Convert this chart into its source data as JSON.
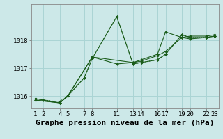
{
  "title": "Graphe pression niveau de la mer (hPa)",
  "bg_color": "#cce8e8",
  "grid_color": "#aad4d4",
  "line_color": "#1a5c1a",
  "ylim": [
    1015.55,
    1019.3
  ],
  "yticks": [
    1016,
    1017,
    1018
  ],
  "xtick_labels": [
    "1",
    "2",
    "4",
    "5",
    "7",
    "8",
    "11",
    "13",
    "14",
    "16",
    "17",
    "19",
    "20",
    "22",
    "23"
  ],
  "xtick_positions": [
    1,
    2,
    4,
    5,
    7,
    8,
    11,
    13,
    14,
    16,
    17,
    19,
    20,
    22,
    23
  ],
  "xlim": [
    0.5,
    23.5
  ],
  "lines": [
    {
      "x": [
        1,
        2,
        4,
        5,
        7,
        8,
        11,
        13,
        14,
        16,
        17,
        19,
        20,
        22,
        23
      ],
      "y": [
        1015.9,
        1015.85,
        1015.8,
        1016.0,
        1016.65,
        1017.35,
        1018.85,
        1017.15,
        1017.2,
        1017.3,
        1017.5,
        1018.2,
        1018.1,
        1018.1,
        1018.15
      ],
      "style": "dotted"
    },
    {
      "x": [
        1,
        4,
        5,
        7,
        8,
        11,
        13,
        14,
        16,
        17,
        19,
        20,
        22,
        23
      ],
      "y": [
        1015.9,
        1015.75,
        1016.0,
        1016.65,
        1017.35,
        1018.85,
        1017.15,
        1017.2,
        1017.3,
        1017.5,
        1018.2,
        1018.1,
        1018.1,
        1018.15
      ],
      "style": "solid"
    },
    {
      "x": [
        1,
        4,
        5,
        8,
        11,
        13,
        14,
        16,
        17,
        19,
        20,
        22,
        23
      ],
      "y": [
        1015.85,
        1015.75,
        1016.0,
        1017.4,
        1017.15,
        1017.2,
        1017.3,
        1017.5,
        1018.3,
        1018.1,
        1018.15,
        1018.15,
        1018.2
      ],
      "style": "solid"
    },
    {
      "x": [
        1,
        4,
        5,
        8,
        13,
        14,
        16,
        17,
        19,
        20,
        22,
        23
      ],
      "y": [
        1015.85,
        1015.75,
        1016.0,
        1017.4,
        1017.2,
        1017.25,
        1017.45,
        1017.6,
        1018.1,
        1018.05,
        1018.1,
        1018.15
      ],
      "style": "solid"
    }
  ],
  "title_fontsize": 8,
  "tick_fontsize": 6.5
}
